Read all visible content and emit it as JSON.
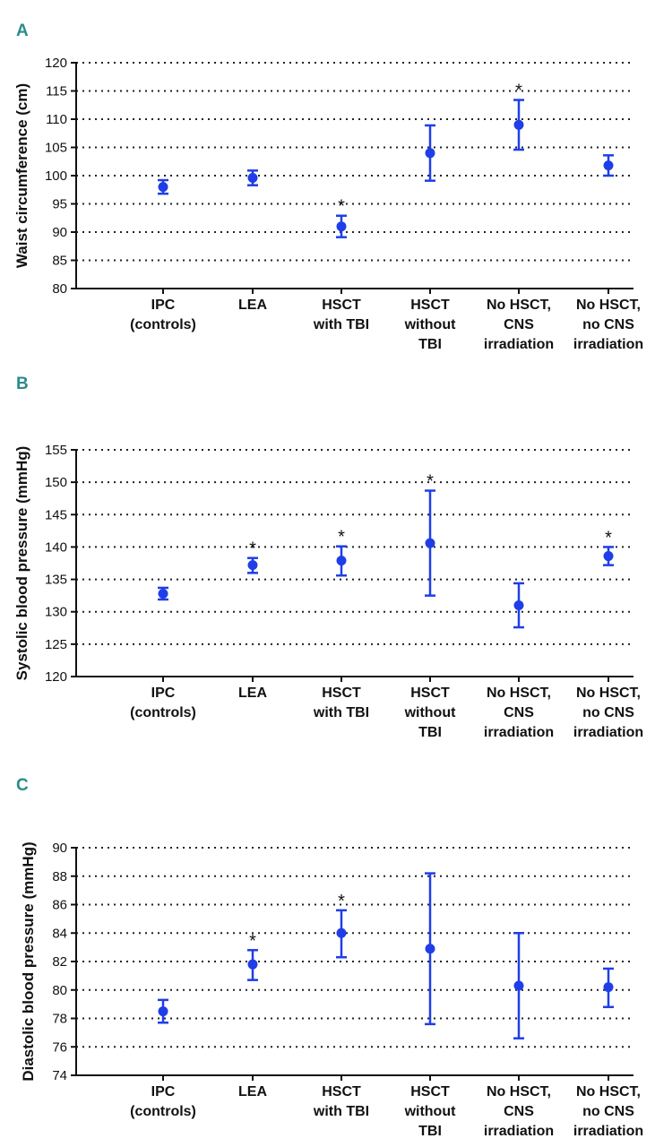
{
  "chart_data": [
    {
      "panel": "A",
      "type": "scatter",
      "ylabel": "Waist circumference (cm)",
      "ylim": [
        80,
        120
      ],
      "yticks": [
        80,
        85,
        90,
        95,
        100,
        105,
        110,
        115,
        120
      ],
      "categories": [
        [
          "IPC",
          "(controls)"
        ],
        [
          "LEA"
        ],
        [
          "HSCT",
          "with TBI"
        ],
        [
          "HSCT",
          "without",
          "TBI"
        ],
        [
          "No HSCT,",
          "CNS",
          "irradiation"
        ],
        [
          "No HSCT,",
          "no CNS",
          "irradiation"
        ]
      ],
      "points": [
        {
          "mean": 98.0,
          "low": 96.8,
          "high": 99.2,
          "sig": false
        },
        {
          "mean": 99.6,
          "low": 98.3,
          "high": 100.9,
          "sig": false
        },
        {
          "mean": 91.0,
          "low": 89.1,
          "high": 92.9,
          "sig": true
        },
        {
          "mean": 104.0,
          "low": 99.1,
          "high": 108.9,
          "sig": false
        },
        {
          "mean": 109.0,
          "low": 104.6,
          "high": 113.4,
          "sig": true
        },
        {
          "mean": 101.8,
          "low": 100.0,
          "high": 103.6,
          "sig": false
        }
      ],
      "sig_marker": "*"
    },
    {
      "panel": "B",
      "type": "scatter",
      "ylabel": "Systolic blood pressure (mmHg)",
      "ylim": [
        120,
        155
      ],
      "yticks": [
        120,
        125,
        130,
        135,
        140,
        145,
        150,
        155
      ],
      "categories": [
        [
          "IPC",
          "(controls)"
        ],
        [
          "LEA"
        ],
        [
          "HSCT",
          "with TBI"
        ],
        [
          "HSCT",
          "without",
          "TBI"
        ],
        [
          "No HSCT,",
          "CNS",
          "irradiation"
        ],
        [
          "No HSCT,",
          "no CNS",
          "irradiation"
        ]
      ],
      "points": [
        {
          "mean": 132.8,
          "low": 131.9,
          "high": 133.7,
          "sig": false
        },
        {
          "mean": 137.2,
          "low": 136.0,
          "high": 138.3,
          "sig": true
        },
        {
          "mean": 137.9,
          "low": 135.6,
          "high": 140.1,
          "sig": true
        },
        {
          "mean": 140.6,
          "low": 132.5,
          "high": 148.7,
          "sig": true
        },
        {
          "mean": 131.0,
          "low": 127.6,
          "high": 134.4,
          "sig": false
        },
        {
          "mean": 138.6,
          "low": 137.2,
          "high": 140.0,
          "sig": true
        }
      ],
      "sig_marker": "*"
    },
    {
      "panel": "C",
      "type": "scatter",
      "ylabel": "Diastolic blood pressure (mmHg)",
      "ylim": [
        74,
        90
      ],
      "yticks": [
        74,
        76,
        78,
        80,
        82,
        84,
        86,
        88,
        90
      ],
      "categories": [
        [
          "IPC",
          "(controls)"
        ],
        [
          "LEA"
        ],
        [
          "HSCT",
          "with TBI"
        ],
        [
          "HSCT",
          "without",
          "TBI"
        ],
        [
          "No HSCT,",
          "CNS",
          "irradiation"
        ],
        [
          "No HSCT,",
          "no CNS",
          "irradiation"
        ]
      ],
      "points": [
        {
          "mean": 78.5,
          "low": 77.7,
          "high": 79.3,
          "sig": false
        },
        {
          "mean": 81.8,
          "low": 80.7,
          "high": 82.8,
          "sig": true
        },
        {
          "mean": 84.0,
          "low": 82.3,
          "high": 85.6,
          "sig": true
        },
        {
          "mean": 82.9,
          "low": 77.6,
          "high": 88.2,
          "sig": false
        },
        {
          "mean": 80.3,
          "low": 76.6,
          "high": 84.0,
          "sig": false
        },
        {
          "mean": 80.2,
          "low": 78.8,
          "high": 81.5,
          "sig": false
        }
      ],
      "sig_marker": "*"
    }
  ]
}
